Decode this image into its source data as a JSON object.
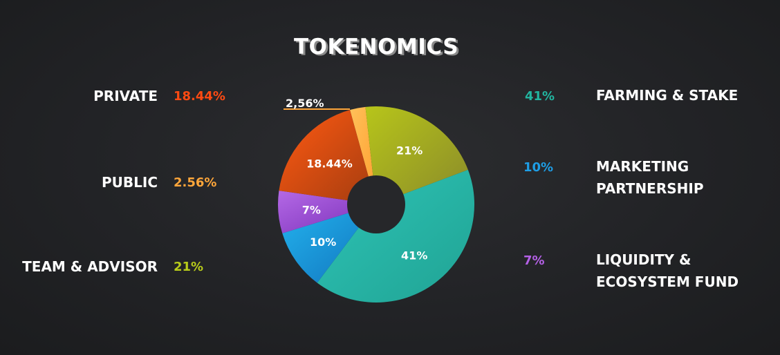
{
  "title": "TOKENOMICS",
  "left_legend": [
    {
      "name": "PRIVATE",
      "value": "18.44%",
      "color": "#ff4a12"
    },
    {
      "name": "PUBLIC",
      "value": "2.56%",
      "color": "#ffa63a"
    },
    {
      "name": "TEAM & ADVISOR",
      "value": "21%",
      "color": "#b8cc1a"
    }
  ],
  "right_legend": [
    {
      "value": "41%",
      "lines": [
        "FARMING & STAKE"
      ],
      "color": "#22b5a0"
    },
    {
      "value": "10%",
      "lines": [
        "MARKETING",
        "PARTNERSHIP"
      ],
      "color": "#1e9ee6"
    },
    {
      "value": "7%",
      "lines": [
        "LIQUIDITY &",
        "ECOSYSTEM FUND"
      ],
      "color": "#b460e6"
    }
  ],
  "chart_data": {
    "type": "pie",
    "donut": true,
    "start_category": "2,56%",
    "categories": [
      "2,56%",
      "21%",
      "41%",
      "10%",
      "7%",
      "18.44%"
    ],
    "values": [
      2.56,
      21,
      41,
      10,
      7,
      18.44
    ],
    "data_labels": [
      "2,56%",
      "21%",
      "41%",
      "10%",
      "7%",
      "18.44%"
    ],
    "colors": [
      [
        "#ffc15a",
        "#ff9f2e"
      ],
      [
        "#b7c51a",
        "#8a8a2a"
      ],
      [
        "#2ec4b6",
        "#20a394"
      ],
      [
        "#23b3ee",
        "#1174bd"
      ],
      [
        "#b469e6",
        "#7a2fb8"
      ],
      [
        "#ff5a12",
        "#a33c10"
      ]
    ]
  }
}
